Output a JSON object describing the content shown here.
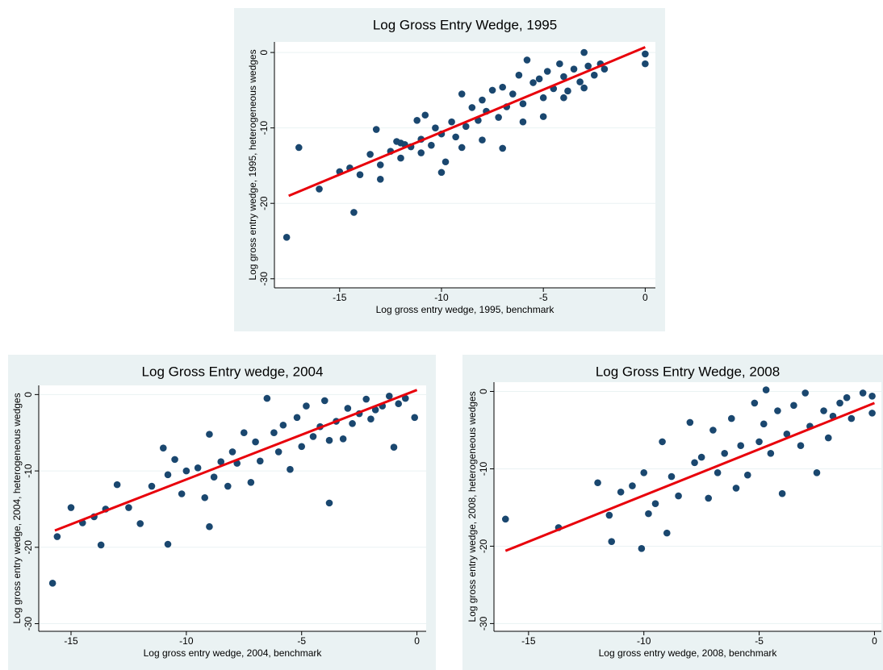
{
  "chart_data": [
    {
      "type": "scatter",
      "title": "Log Gross Entry Wedge, 1995",
      "x_label": "Log gross entry wedge, 1995, benchmark",
      "y_label": "Log gross entry wedge, 1995, heterogeneous wedges",
      "xlim": [
        -18.2,
        0.5
      ],
      "ylim": [
        -31.2,
        1.4
      ],
      "xticks": [
        -15,
        -10,
        -5,
        0
      ],
      "yticks": [
        -30,
        -20,
        -10,
        0
      ],
      "grid": true,
      "points": {
        "color": "#1a476f",
        "x": [
          -15,
          -14.5,
          -14,
          -13.5,
          -13.2,
          -13,
          -12.5,
          -12.2,
          -12,
          -11.8,
          -11.5,
          -11.2,
          -11,
          -10.8,
          -10.5,
          -10.3,
          -10,
          -9.8,
          -9.5,
          -9.3,
          -9,
          -8.8,
          -8.5,
          -8.2,
          -8,
          -7.8,
          -7.5,
          -7.2,
          -7,
          -6.8,
          -6.5,
          -6.2,
          -6,
          -5.8,
          -5.5,
          -5.2,
          -5,
          -4.8,
          -4.5,
          -4.2,
          -4,
          -3.8,
          -3.5,
          -3.2,
          -3,
          -2.8,
          -2.5,
          -2.2,
          -2,
          -13,
          -12,
          -11,
          -10,
          -9,
          -8,
          -7,
          -6,
          -5,
          -4,
          -3,
          -17.6,
          -17,
          -14.3,
          -16,
          0,
          0
        ],
        "y": [
          -15.8,
          -15.3,
          -16.2,
          -13.5,
          -10.2,
          -14.9,
          -13.1,
          -11.8,
          -14,
          -12.2,
          -12.5,
          -9,
          -11.5,
          -8.3,
          -12.3,
          -10,
          -10.8,
          -14.5,
          -9.2,
          -11.2,
          -5.5,
          -9.8,
          -7.3,
          -9,
          -6.3,
          -7.8,
          -5,
          -8.6,
          -4.6,
          -7.2,
          -5.5,
          -3,
          -6.8,
          -1,
          -4,
          -3.5,
          -6,
          -2.5,
          -4.8,
          -1.5,
          -3.2,
          -5.1,
          -2.2,
          -3.9,
          0,
          -1.8,
          -3,
          -1.5,
          -2.2,
          -16.8,
          -12,
          -13.3,
          -15.9,
          -12.6,
          -11.6,
          -12.7,
          -9.2,
          -8.5,
          -6,
          -4.7,
          -24.5,
          -12.6,
          -21.2,
          -18.1,
          -0.2,
          -1.5
        ]
      },
      "fit_line": {
        "color": "#e8000b",
        "x": [
          -17.5,
          0
        ],
        "y": [
          -19,
          0.7
        ]
      }
    },
    {
      "type": "scatter",
      "title": "Log Gross Entry wedge, 2004",
      "x_label": "Log gross entry wedge, 2004, benchmark",
      "y_label": "Log gross entry wedge, 2004, heterogeneous wedges",
      "xlim": [
        -16.4,
        0.4
      ],
      "ylim": [
        -31,
        1.2
      ],
      "xticks": [
        -15,
        -10,
        -5,
        0
      ],
      "yticks": [
        -30,
        -20,
        -10,
        0
      ],
      "grid": true,
      "points": {
        "color": "#1a476f",
        "x": [
          -15,
          -14.5,
          -14,
          -13.5,
          -13,
          -12.5,
          -12,
          -11.5,
          -11,
          -10.8,
          -10.5,
          -10.2,
          -10,
          -9.5,
          -9.2,
          -9,
          -8.8,
          -8.5,
          -8.2,
          -8,
          -7.8,
          -7.5,
          -7.2,
          -7,
          -6.8,
          -6.5,
          -6.2,
          -6,
          -5.8,
          -5.5,
          -5.2,
          -5,
          -4.8,
          -4.5,
          -4.2,
          -4,
          -3.8,
          -3.5,
          -3.2,
          -3,
          -2.8,
          -2.5,
          -2.2,
          -2,
          -1.8,
          -1.5,
          -1.2,
          -1,
          -0.8,
          -0.5,
          -0.1,
          -15.8,
          -15.6,
          -3.8,
          -10.8,
          -9,
          -13.7
        ],
        "y": [
          -14.8,
          -16.8,
          -16,
          -15,
          -11.8,
          -14.8,
          -16.9,
          -12,
          -7,
          -10.5,
          -8.5,
          -13,
          -10,
          -9.6,
          -13.5,
          -5.2,
          -10.8,
          -8.8,
          -12,
          -7.5,
          -9,
          -5,
          -11.5,
          -6.2,
          -8.7,
          -0.5,
          -5,
          -7.5,
          -4,
          -9.8,
          -3,
          -6.8,
          -1.5,
          -5.5,
          -4.2,
          -0.8,
          -6,
          -3.5,
          -5.8,
          -1.8,
          -3.8,
          -2.5,
          -0.6,
          -3.2,
          -2,
          -1.5,
          -0.2,
          -6.9,
          -1.2,
          -0.5,
          -3,
          -24.7,
          -18.6,
          -14.2,
          -19.6,
          -17.3,
          -19.7
        ]
      },
      "fit_line": {
        "color": "#e8000b",
        "x": [
          -15.7,
          0
        ],
        "y": [
          -17.8,
          0.6
        ]
      }
    },
    {
      "type": "scatter",
      "title": "Log Gross Entry Wedge, 2008",
      "x_label": "Log gross entry wedge, 2008, benchmark",
      "y_label": "Log gross entry wedge, 2008, heterogeneous wedges",
      "xlim": [
        -16.5,
        0.3
      ],
      "ylim": [
        -31,
        1.2
      ],
      "xticks": [
        -15,
        -10,
        -5,
        0
      ],
      "yticks": [
        -30,
        -20,
        -10,
        0
      ],
      "grid": true,
      "points": {
        "color": "#1a476f",
        "x": [
          -12,
          -11.5,
          -11,
          -10.5,
          -10,
          -9.5,
          -9.2,
          -9,
          -8.8,
          -8.5,
          -8,
          -7.8,
          -7.5,
          -7.2,
          -7,
          -6.8,
          -6.5,
          -6.2,
          -6,
          -5.8,
          -5.5,
          -5.2,
          -5,
          -4.8,
          -4.5,
          -4.2,
          -4,
          -3.8,
          -3.5,
          -3.2,
          -3,
          -2.8,
          -2.5,
          -2.2,
          -2,
          -1.8,
          -1.5,
          -1.2,
          -1,
          -0.5,
          -0.1,
          -0.1,
          -9.8,
          -16,
          -10.1,
          -11.4,
          -13.7,
          -4.7
        ],
        "y": [
          -11.8,
          -16,
          -13,
          -12.2,
          -10.5,
          -14.5,
          -6.5,
          -18.3,
          -11,
          -13.5,
          -4,
          -9.2,
          -8.5,
          -13.8,
          -5,
          -10.5,
          -8,
          -3.5,
          -12.5,
          -7,
          -10.8,
          -1.5,
          -6.5,
          -4.2,
          -8,
          -2.5,
          -13.2,
          -5.5,
          -1.8,
          -7,
          -0.2,
          -4.5,
          -10.5,
          -2.5,
          -6,
          -3.2,
          -1.5,
          -0.8,
          -3.5,
          -0.2,
          -2.8,
          -0.6,
          -15.8,
          -16.5,
          -20.3,
          -19.4,
          -17.6,
          0.2
        ]
      },
      "fit_line": {
        "color": "#e8000b",
        "x": [
          -16,
          0
        ],
        "y": [
          -20.6,
          -1.5
        ]
      }
    }
  ]
}
